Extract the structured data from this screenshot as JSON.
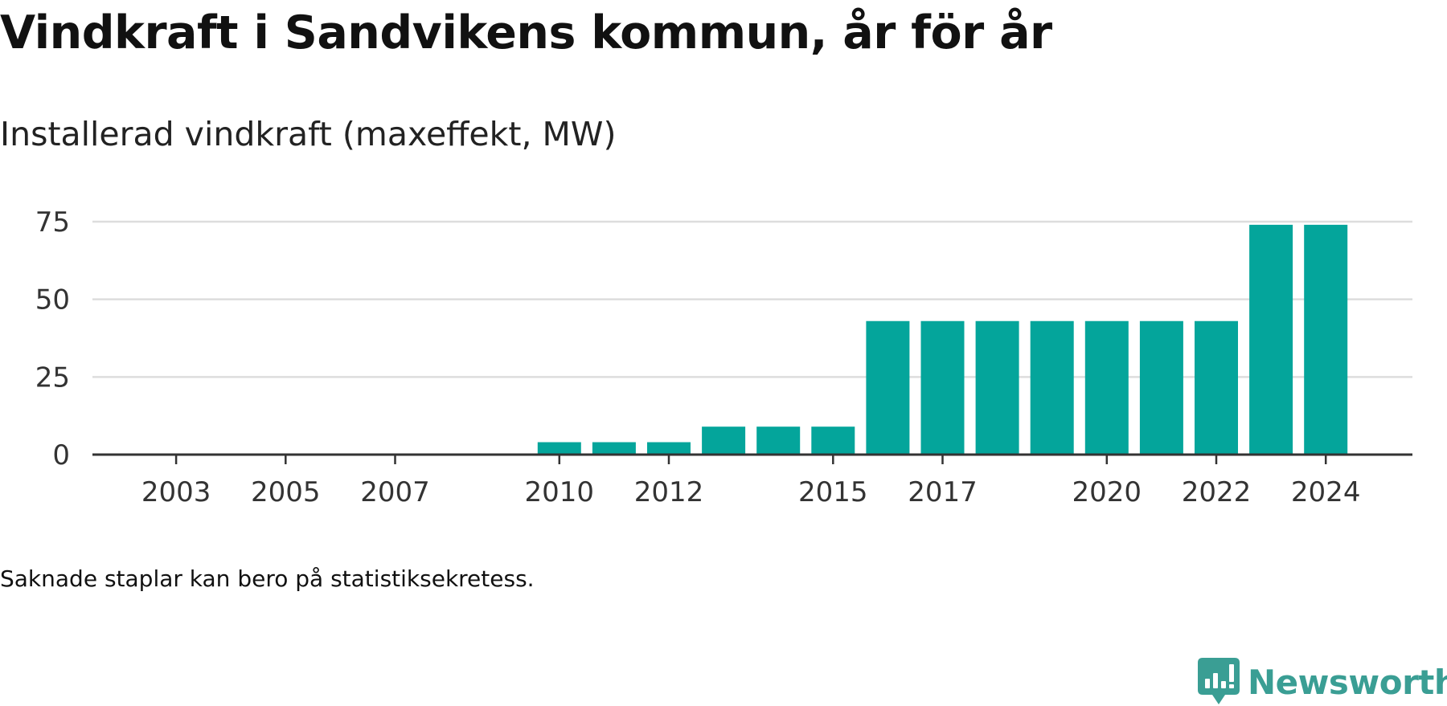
{
  "header": {
    "title": "Vindkraft i Sandvikens kommun, år för år",
    "subtitle": "Installerad vindkraft (maxeffekt, MW)"
  },
  "footer": {
    "note": "Saknade staplar kan bero på statistiksekretess.",
    "brand": "Newsworthy",
    "brand_icon": "newsworthy-logo-icon"
  },
  "colors": {
    "bar": "#04a59b",
    "grid": "#dddddd",
    "axis": "#333333",
    "brand": "#3a9e94"
  },
  "chart_data": {
    "type": "bar",
    "title": "Vindkraft i Sandvikens kommun, år för år",
    "subtitle": "Installerad vindkraft (maxeffekt, MW)",
    "xlabel": "",
    "ylabel": "",
    "ylim": [
      0,
      75
    ],
    "yticks": [
      0,
      25,
      50,
      75
    ],
    "grid": true,
    "legend": "none",
    "categories": [
      2002,
      2003,
      2004,
      2005,
      2006,
      2007,
      2008,
      2009,
      2010,
      2011,
      2012,
      2013,
      2014,
      2015,
      2016,
      2017,
      2018,
      2019,
      2020,
      2021,
      2022,
      2023,
      2024
    ],
    "xtick_labels": [
      2003,
      2005,
      2007,
      2010,
      2012,
      2015,
      2017,
      2020,
      2022,
      2024
    ],
    "values": [
      null,
      null,
      null,
      null,
      null,
      null,
      null,
      null,
      4,
      4,
      4,
      9,
      9,
      9,
      43,
      43,
      43,
      43,
      43,
      43,
      43,
      74,
      74
    ]
  }
}
